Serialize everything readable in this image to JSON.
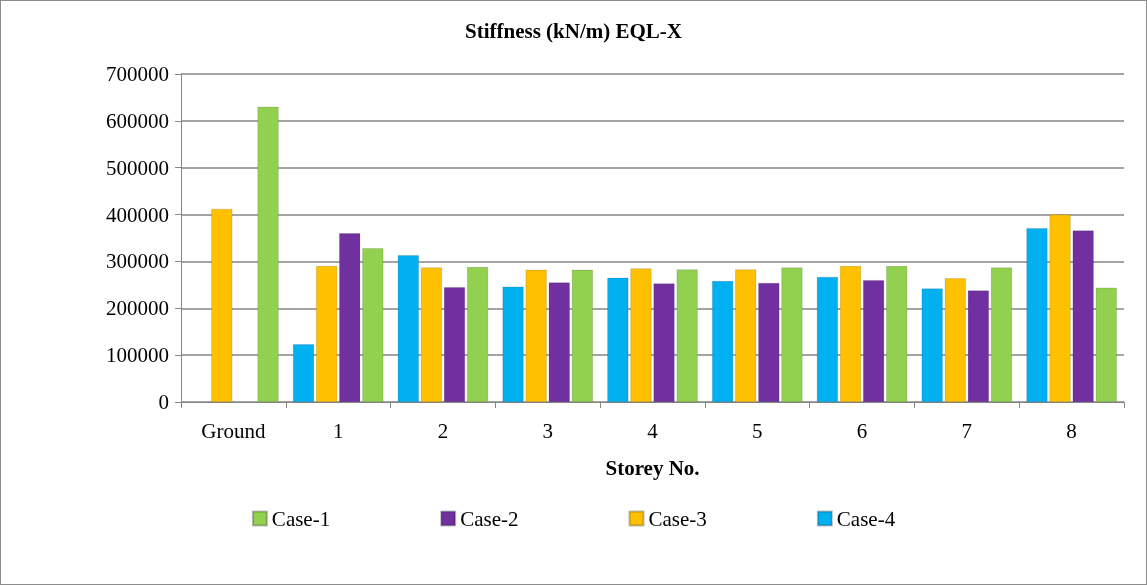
{
  "chart_data": {
    "type": "bar",
    "title": "Stiffness (kN/m) EQL-X",
    "xlabel": "Storey No.",
    "categories": [
      "Ground",
      "1",
      "2",
      "3",
      "4",
      "5",
      "6",
      "7",
      "8"
    ],
    "series": [
      {
        "name": "Case-1",
        "color": "#92d050",
        "values": [
          630000,
          328000,
          288000,
          282000,
          283000,
          287000,
          290000,
          287000,
          244000
        ]
      },
      {
        "name": "Case-2",
        "color": "#7030a0",
        "values": [
          null,
          360000,
          245000,
          255000,
          253000,
          254000,
          260000,
          238000,
          366000
        ]
      },
      {
        "name": "Case-3",
        "color": "#ffc000",
        "values": [
          412000,
          290000,
          287000,
          282000,
          285000,
          283000,
          290000,
          264000,
          400000
        ]
      },
      {
        "name": "Case-4",
        "color": "#00b0f0",
        "values": [
          null,
          123000,
          313000,
          246000,
          265000,
          258000,
          267000,
          242000,
          371000
        ]
      }
    ],
    "ylim": [
      0,
      700000
    ],
    "yticks": [
      0,
      100000,
      200000,
      300000,
      400000,
      500000,
      600000,
      700000
    ],
    "grid": "y",
    "legend": "bottom"
  }
}
